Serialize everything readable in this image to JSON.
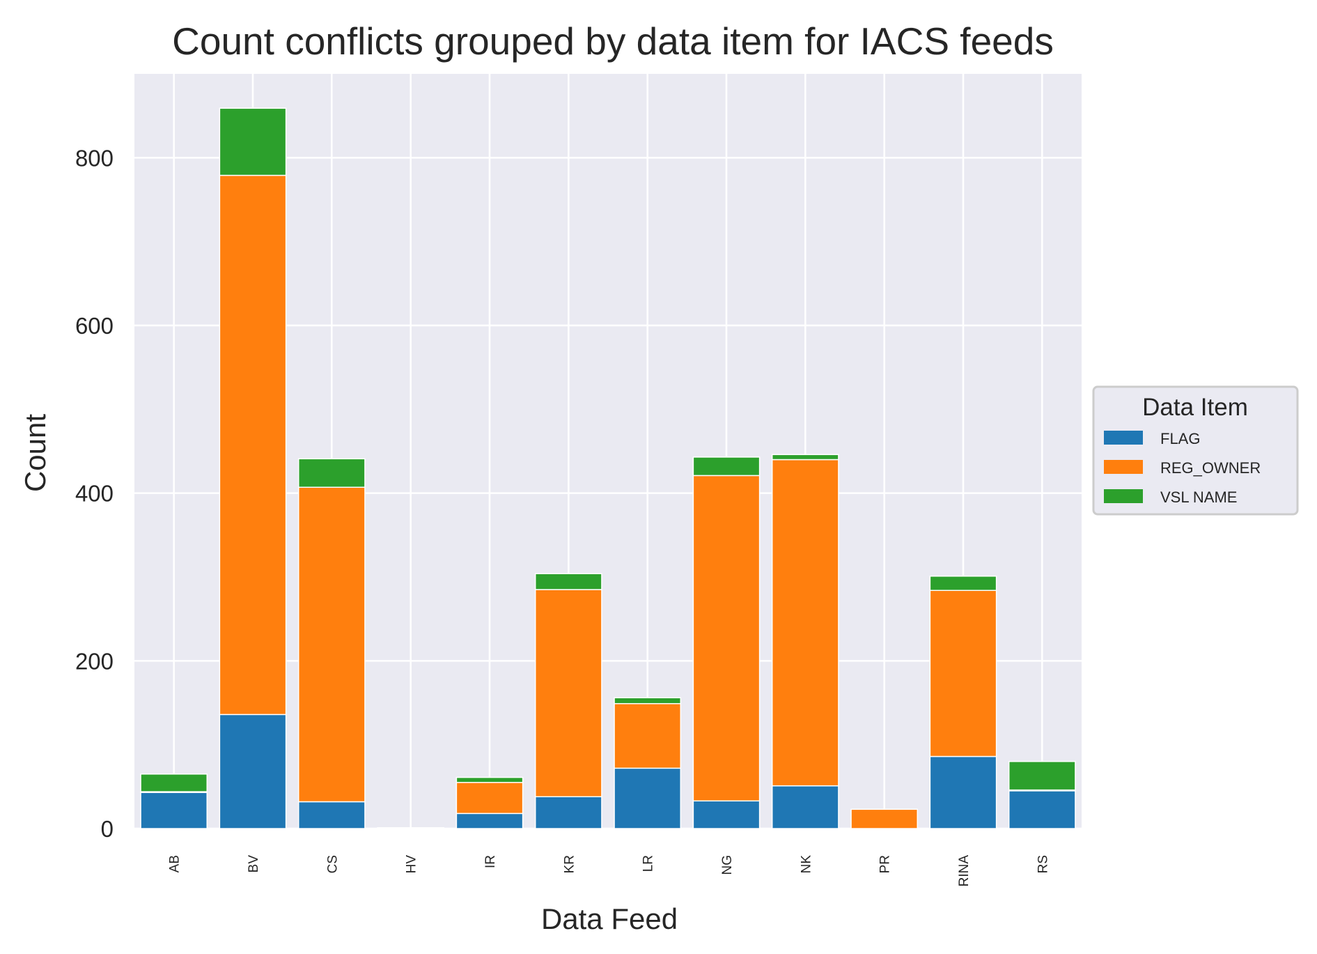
{
  "chart_data": {
    "type": "bar",
    "stacked": true,
    "title": "Count conflicts grouped by data item for IACS feeds",
    "xlabel": "Data Feed",
    "ylabel": "Count",
    "ylim": [
      0,
      900
    ],
    "yticks": [
      0,
      200,
      400,
      600,
      800
    ],
    "grid": true,
    "categories": [
      "AB",
      "BV",
      "CS",
      "HV",
      "IR",
      "KR",
      "LR",
      "NG",
      "NK",
      "PR",
      "RINA",
      "RS"
    ],
    "series": [
      {
        "name": "FLAG",
        "color": "#1f77b4",
        "values": [
          43,
          136,
          32,
          0,
          18,
          38,
          72,
          33,
          51,
          0,
          86,
          45
        ]
      },
      {
        "name": "REG_OWNER",
        "color": "#ff7f0e",
        "values": [
          1,
          643,
          375,
          1,
          37,
          247,
          77,
          388,
          389,
          23,
          198,
          1
        ]
      },
      {
        "name": "VSL NAME",
        "color": "#2ca02c",
        "values": [
          21,
          80,
          34,
          0,
          6,
          19,
          7,
          22,
          6,
          0,
          17,
          34
        ]
      }
    ],
    "legend": {
      "title": "Data Item",
      "placement": "center-right-outside"
    },
    "background": "#eaeaf2",
    "gridcolor": "#ffffff"
  }
}
